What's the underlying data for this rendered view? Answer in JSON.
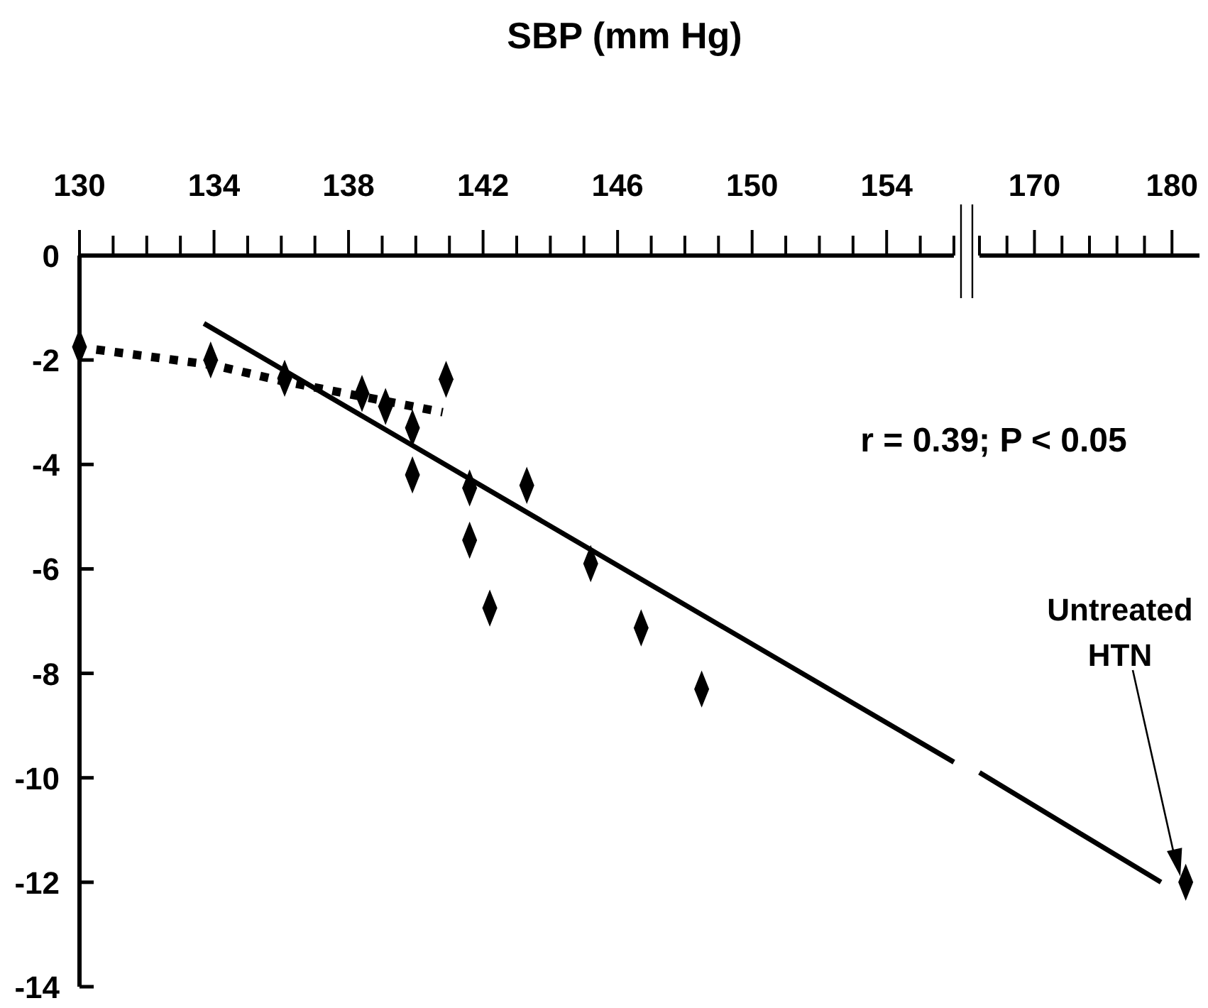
{
  "chart_data": [
    {
      "type": "scatter",
      "xlabel": "SBP (mm Hg)",
      "xlim": [
        130,
        156
      ],
      "xticks": [
        130,
        {
          "value": 131,
          "label": null
        },
        {
          "value": 132,
          "label": null
        },
        {
          "value": 133,
          "label": null
        },
        134,
        {
          "value": 135,
          "label": null
        },
        {
          "value": 136,
          "label": null
        },
        {
          "value": 137,
          "label": null
        },
        138,
        {
          "value": 139,
          "label": null
        },
        {
          "value": 140,
          "label": null
        },
        {
          "value": 141,
          "label": null
        },
        142,
        {
          "value": 143,
          "label": null
        },
        {
          "value": 144,
          "label": null
        },
        {
          "value": 145,
          "label": null
        },
        146,
        {
          "value": 147,
          "label": null
        },
        {
          "value": 148,
          "label": null
        },
        {
          "value": 149,
          "label": null
        },
        150,
        {
          "value": 151,
          "label": null
        },
        {
          "value": 152,
          "label": null
        },
        {
          "value": 153,
          "label": null
        },
        154,
        {
          "value": 155,
          "label": null
        },
        {
          "value": 156,
          "label": null
        }
      ],
      "ylim": [
        -14,
        0
      ],
      "yticks": [
        0,
        -2,
        -4,
        -6,
        -8,
        -10,
        -12,
        -14
      ],
      "grid": false,
      "series": [
        {
          "color": "#000000",
          "marker": "diamond",
          "x": [
            130,
            133.9,
            136.1,
            138.4,
            139.1,
            139.9,
            140.9,
            139.9,
            141.6,
            143.3,
            141.6,
            142.2,
            145.2,
            146.7,
            148.5
          ],
          "values": [
            -1.75,
            -2.0,
            -2.35,
            -2.64,
            -2.89,
            -3.3,
            -2.37,
            -4.2,
            -4.45,
            -4.4,
            -5.45,
            -6.75,
            -5.9,
            -7.13,
            -8.3
          ]
        },
        {
          "type": "line",
          "color": "#000000",
          "line_style": "solid",
          "marker": "none",
          "x": [
            133.7,
            156
          ],
          "values": [
            -1.3,
            -9.7
          ]
        },
        {
          "type": "line",
          "color": "#000000",
          "line_style": "dotted",
          "marker": "none",
          "x": [
            130.5,
            134,
            136,
            138.4,
            140.8
          ],
          "values": [
            -1.8,
            -2.1,
            -2.4,
            -2.7,
            -3.0
          ]
        }
      ],
      "annotations": [
        "r = 0.39; P < 0.05"
      ]
    },
    {
      "type": "scatter",
      "xlim": [
        166,
        182
      ],
      "xticks": [
        {
          "value": 166,
          "label": null
        },
        {
          "value": 168,
          "label": null
        },
        170,
        {
          "value": 172,
          "label": null
        },
        {
          "value": 174,
          "label": null
        },
        {
          "value": 176,
          "label": null
        },
        {
          "value": 178,
          "label": null
        },
        180
      ],
      "ylim": [
        -14,
        0
      ],
      "tick_labels": "x",
      "series": [
        {
          "color": "#000000",
          "marker": "diamond",
          "x": [
            181
          ],
          "values": [
            -12.0
          ]
        },
        {
          "type": "line",
          "color": "#000000",
          "line_style": "solid",
          "marker": "none",
          "x": [
            166,
            179.2
          ],
          "values": [
            -9.9,
            -12.0
          ]
        }
      ],
      "annotations": [
        "Untreated HTN"
      ]
    }
  ]
}
